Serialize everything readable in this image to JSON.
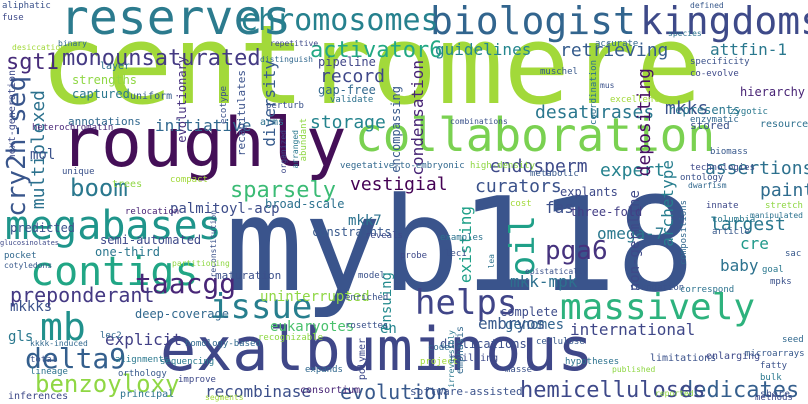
{
  "words": [
    {
      "text": "centromere",
      "color": "#a2d93a"
    },
    {
      "text": "myb118",
      "color": "#3a548c"
    },
    {
      "text": "exalbuminous",
      "color": "#3f4788"
    },
    {
      "text": "roughly",
      "color": "#440f57"
    },
    {
      "text": "collaboration",
      "color": "#7ad151"
    },
    {
      "text": "reserves",
      "color": "#2c7b8e"
    },
    {
      "text": "biologist",
      "color": "#32658e"
    },
    {
      "text": "kingdoms",
      "color": "#3e4a89"
    },
    {
      "text": "chromosomes",
      "color": "#26818e"
    },
    {
      "text": "megabases",
      "color": "#1f958b"
    },
    {
      "text": "contigs",
      "color": "#21a685"
    },
    {
      "text": "helps",
      "color": "#404588"
    },
    {
      "text": "massively",
      "color": "#2db27d"
    },
    {
      "text": "issue",
      "color": "#277f8e"
    },
    {
      "text": "mb",
      "color": "#21918c"
    },
    {
      "text": "oil",
      "color": "#1fa088"
    },
    {
      "text": "delta9",
      "color": "#345f8d"
    },
    {
      "text": "benzoyloxy",
      "color": "#8fd744"
    },
    {
      "text": "cry2h-seq",
      "color": "#39568c"
    },
    {
      "text": "monounsaturated",
      "color": "#443a83"
    },
    {
      "text": "activator6",
      "color": "#22a884"
    },
    {
      "text": "sgt1",
      "color": "#472c7a"
    },
    {
      "text": "boom",
      "color": "#2a788e"
    },
    {
      "text": "taacgg",
      "color": "#482677"
    },
    {
      "text": "pga6",
      "color": "#46337e"
    },
    {
      "text": "sparsely",
      "color": "#3bbb75"
    },
    {
      "text": "paint",
      "color": "#2f6c8e"
    },
    {
      "text": "preponderant",
      "color": "#443983"
    },
    {
      "text": "assertions",
      "color": "#2d718e"
    },
    {
      "text": "dedicates",
      "color": "#355f8d"
    },
    {
      "text": "recombinase",
      "color": "#3c4f8a"
    },
    {
      "text": "evolution",
      "color": "#38598c"
    },
    {
      "text": "hemicelluloses",
      "color": "#3e4989"
    },
    {
      "text": "initiative",
      "color": "#31688e"
    },
    {
      "text": "record",
      "color": "#3f4889"
    },
    {
      "text": "storage",
      "color": "#25848e"
    },
    {
      "text": "desaturases",
      "color": "#2a778e"
    },
    {
      "text": "expert",
      "color": "#26828e"
    },
    {
      "text": "curators",
      "color": "#3b528b"
    },
    {
      "text": "vestigial",
      "color": "#440154"
    },
    {
      "text": "endosperm",
      "color": "#3e4a89"
    },
    {
      "text": "multiplexed",
      "color": "#2c728e"
    },
    {
      "text": "diversity",
      "color": "#375b8d"
    },
    {
      "text": "condensation",
      "color": "#482576"
    },
    {
      "text": "guidelines",
      "color": "#24868e"
    },
    {
      "text": "retrieving",
      "color": "#365c8d"
    },
    {
      "text": "attfin-1",
      "color": "#2a788e"
    },
    {
      "text": "mkks",
      "color": "#3b528b"
    },
    {
      "text": "hierarchy",
      "color": "#482475"
    },
    {
      "text": "depositing",
      "color": "#471063"
    },
    {
      "text": "archetype",
      "color": "#277e8e"
    },
    {
      "text": "fas",
      "color": "#3c4f8a"
    },
    {
      "text": "omega-7",
      "color": "#2a788e"
    },
    {
      "text": "largest",
      "color": "#2a788e"
    },
    {
      "text": "cre",
      "color": "#1f998a"
    },
    {
      "text": "baby",
      "color": "#2c728e"
    },
    {
      "text": "non-germline",
      "color": "#3e4989"
    },
    {
      "text": "international",
      "color": "#3f4788"
    },
    {
      "text": "genomes",
      "color": "#32658e"
    },
    {
      "text": "embryos",
      "color": "#38598c"
    },
    {
      "text": "mkk-mpk",
      "color": "#2d708e"
    },
    {
      "text": "eukaryotes",
      "color": "#4ac16d"
    },
    {
      "text": "uninterrupted",
      "color": "#8fd744"
    },
    {
      "text": "mkkks",
      "color": "#3b528b"
    },
    {
      "text": "gls",
      "color": "#2a788e"
    },
    {
      "text": "explicit",
      "color": "#424086"
    },
    {
      "text": "palmitoyl-acp",
      "color": "#3d4d8a"
    },
    {
      "text": "mkk7",
      "color": "#2c728e"
    },
    {
      "text": "predicted",
      "color": "#3b528b"
    },
    {
      "text": "existing",
      "color": "#1fa088"
    },
    {
      "text": "ensuing",
      "color": "#238a8d"
    },
    {
      "text": "en",
      "color": "#25848e"
    },
    {
      "text": "duplications",
      "color": "#3c4f8a"
    },
    {
      "text": "complete",
      "color": "#3e4c8a"
    },
    {
      "text": "pipeline",
      "color": "#404688"
    },
    {
      "text": "gap-free",
      "color": "#31688e"
    },
    {
      "text": "evolutionary",
      "color": "#46307e"
    },
    {
      "text": "encompassing",
      "color": "#38598c"
    },
    {
      "text": "one-third",
      "color": "#2a768e"
    },
    {
      "text": "semi-automated",
      "color": "#3e4989"
    },
    {
      "text": "deep-coverage",
      "color": "#31688e"
    },
    {
      "text": "maturation",
      "color": "#3c508b"
    },
    {
      "text": "broad-scale",
      "color": "#2c718e"
    },
    {
      "text": "constraints",
      "color": "#38598c"
    },
    {
      "text": "explants",
      "color": "#3e4a89"
    },
    {
      "text": "three-fold",
      "color": "#433e85"
    },
    {
      "text": "annotations",
      "color": "#31688e"
    },
    {
      "text": "strengths",
      "color": "#8fd744"
    },
    {
      "text": "captured",
      "color": "#2a788e"
    },
    {
      "text": "recapitulates",
      "color": "#3b528b"
    },
    {
      "text": "next-generation",
      "color": "#3e4a89"
    },
    {
      "text": "heterochromatin",
      "color": "#482677"
    },
    {
      "text": "mol",
      "color": "#3b528b"
    },
    {
      "text": "layer",
      "color": "#2c728e"
    },
    {
      "text": "uniform",
      "color": "#365c8d"
    },
    {
      "text": "stored",
      "color": "#3b528b"
    },
    {
      "text": "represents",
      "color": "#2a768e"
    },
    {
      "text": "resource",
      "color": "#2d708e"
    },
    {
      "text": "share",
      "color": "#3b528b"
    },
    {
      "text": "building",
      "color": "#3e4a89"
    },
    {
      "text": "limitations",
      "color": "#3b528b"
    },
    {
      "text": "enlarging",
      "color": "#3e4989"
    },
    {
      "text": "consortium",
      "color": "#482475"
    },
    {
      "text": "software-assisted",
      "color": "#3b528b"
    },
    {
      "text": "alignments",
      "color": "#2a788e"
    },
    {
      "text": "orthology",
      "color": "#38598c"
    },
    {
      "text": "inferences",
      "color": "#3e4989"
    },
    {
      "text": "principal",
      "color": "#2c728e"
    },
    {
      "text": "polymer",
      "color": "#3e4989"
    },
    {
      "text": "cellulose",
      "color": "#38598c"
    },
    {
      "text": "emphasis",
      "color": "#31688e"
    },
    {
      "text": "columbia",
      "color": "#2a788e"
    },
    {
      "text": "article",
      "color": "#38598c"
    },
    {
      "text": "innate",
      "color": "#3e4989"
    },
    {
      "text": "foundation",
      "color": "#3b528b"
    },
    {
      "text": "correspond",
      "color": "#2c728e"
    },
    {
      "text": "compositions",
      "color": "#31688e"
    },
    {
      "text": "technologies",
      "color": "#3e4989"
    },
    {
      "text": "ontology",
      "color": "#3b528b"
    },
    {
      "text": "biomass",
      "color": "#38598c"
    },
    {
      "text": "ecotype",
      "color": "#3b528b"
    },
    {
      "text": "zygotic",
      "color": "#2a788e"
    },
    {
      "text": "enzymatic",
      "color": "#31688e"
    },
    {
      "text": "specificity",
      "color": "#3b528b"
    },
    {
      "text": "co-evolve",
      "color": "#3e4989"
    },
    {
      "text": "coordination",
      "color": "#2c728e"
    },
    {
      "text": "muschel",
      "color": "#38598c"
    },
    {
      "text": "accurate",
      "color": "#31688e"
    },
    {
      "text": "aliphatic",
      "color": "#3b528b"
    },
    {
      "text": "fuse",
      "color": "#3e4989"
    },
    {
      "text": "desiccation",
      "color": "#a2d93a"
    },
    {
      "text": "vegetative-to-embryonic",
      "color": "#31688e"
    },
    {
      "text": "high-density",
      "color": "#8fd744"
    },
    {
      "text": "metabolic",
      "color": "#38598c"
    },
    {
      "text": "relocation",
      "color": "#482475"
    },
    {
      "text": "trees",
      "color": "#8fd744"
    },
    {
      "text": "compact",
      "color": "#a2d93a"
    },
    {
      "text": "perturb",
      "color": "#3b528b"
    },
    {
      "text": "validate",
      "color": "#2c728e"
    },
    {
      "text": "excellent",
      "color": "#a2d93a"
    },
    {
      "text": "mpks",
      "color": "#3b528b"
    },
    {
      "text": "goal",
      "color": "#2a788e"
    },
    {
      "text": "stretch",
      "color": "#8fd744"
    },
    {
      "text": "manipulated",
      "color": "#2c728e"
    },
    {
      "text": "sac",
      "color": "#38598c"
    },
    {
      "text": "lec1",
      "color": "#3b528b"
    },
    {
      "text": "lec2",
      "color": "#31688e"
    },
    {
      "text": "probe",
      "color": "#3e4989"
    },
    {
      "text": "examples",
      "color": "#2c728e"
    },
    {
      "text": "rosettes",
      "color": "#3b528b"
    },
    {
      "text": "homology-based",
      "color": "#31688e"
    },
    {
      "text": "sequencing",
      "color": "#2a788e"
    },
    {
      "text": "recognizable",
      "color": "#8fd744"
    },
    {
      "text": "enriched",
      "color": "#3b528b"
    },
    {
      "text": "reveals",
      "color": "#3e4989"
    },
    {
      "text": "project",
      "color": "#a2d93a"
    },
    {
      "text": "code",
      "color": "#31688e"
    },
    {
      "text": "masse",
      "color": "#3b528b"
    },
    {
      "text": "hypotheses",
      "color": "#2c728e"
    },
    {
      "text": "microarrays",
      "color": "#38598c"
    },
    {
      "text": "fatty",
      "color": "#3b528b"
    },
    {
      "text": "bulk",
      "color": "#2a788e"
    },
    {
      "text": "methods",
      "color": "#3e4989"
    },
    {
      "text": "seed",
      "color": "#31688e"
    },
    {
      "text": "arms",
      "color": "#2c728e"
    },
    {
      "text": "abundant",
      "color": "#8fd744"
    },
    {
      "text": "model",
      "color": "#3b528b"
    },
    {
      "text": "expands",
      "color": "#31688e"
    },
    {
      "text": "improve",
      "color": "#3e4989"
    },
    {
      "text": "lineage",
      "color": "#2c728e"
    },
    {
      "text": "total",
      "color": "#3b528b"
    },
    {
      "text": "pocket",
      "color": "#31688e"
    },
    {
      "text": "unique",
      "color": "#3b528b"
    },
    {
      "text": "segments",
      "color": "#a2d93a"
    },
    {
      "text": "reported",
      "color": "#8fd744"
    },
    {
      "text": "binary",
      "color": "#31688e"
    },
    {
      "text": "repetitive",
      "color": "#3e4989"
    },
    {
      "text": "distinguish",
      "color": "#31688e"
    },
    {
      "text": "defined",
      "color": "#38598c"
    },
    {
      "text": "species",
      "color": "#2c728e"
    },
    {
      "text": "arranged",
      "color": "#2a788e"
    },
    {
      "text": "organized",
      "color": "#3e4989"
    },
    {
      "text": "reconstitution",
      "color": "#3b528b"
    },
    {
      "text": "partitioning",
      "color": "#8fd744"
    },
    {
      "text": "epistatically",
      "color": "#3b528b"
    },
    {
      "text": "lea",
      "color": "#2c728e"
    },
    {
      "text": "mus",
      "color": "#3b528b"
    },
    {
      "text": "dwarfism",
      "color": "#31688e"
    },
    {
      "text": "glucosinolates",
      "color": "#3e4989"
    },
    {
      "text": "cotyledons",
      "color": "#38598c"
    },
    {
      "text": "irreversibly",
      "color": "#2a788e"
    },
    {
      "text": "published",
      "color": "#8fd744"
    },
    {
      "text": "combinations",
      "color": "#3b528b"
    },
    {
      "text": "kkkk-induced",
      "color": "#31688e"
    },
    {
      "text": "cost",
      "color": "#a2d93a"
    },
    {
      "text": "nuclear",
      "color": "#3b528b"
    },
    {
      "text": "manipulated",
      "color": "#2c728e"
    }
  ]
}
